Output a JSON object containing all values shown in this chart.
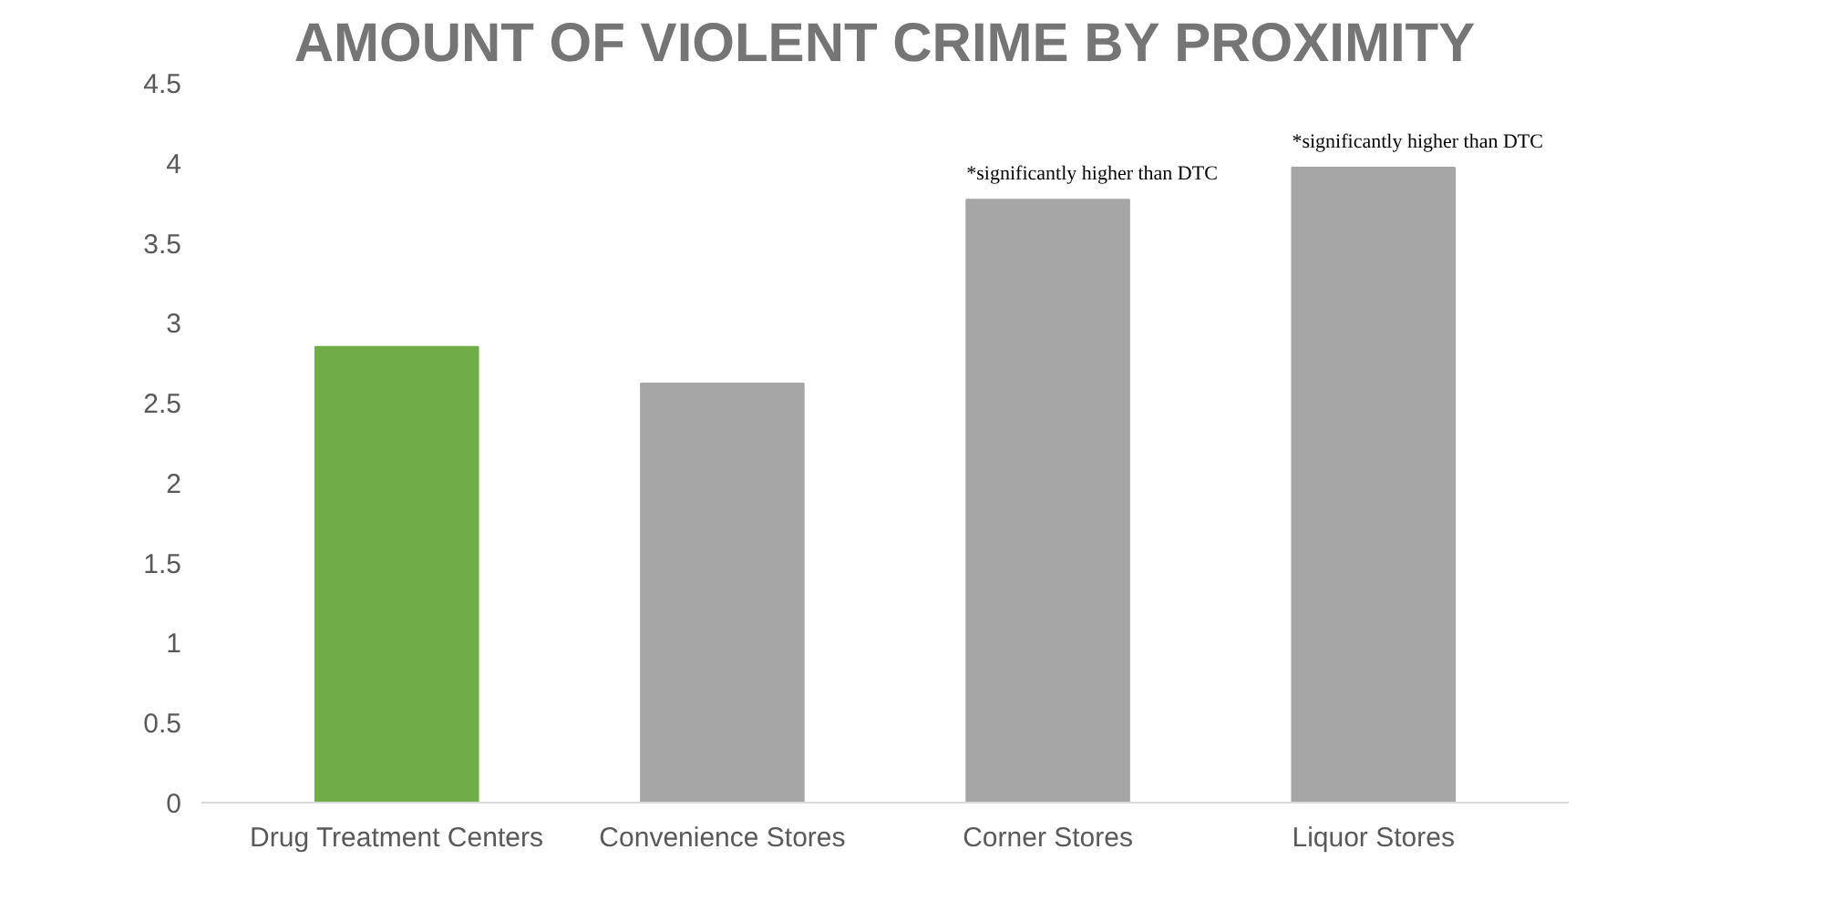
{
  "chart_data": {
    "type": "bar",
    "title": "AMOUNT OF VIOLENT CRIME BY PROXIMITY",
    "categories": [
      "Drug Treatment Centers",
      "Convenience Stores",
      "Corner Stores",
      "Liquor Stores"
    ],
    "values": [
      2.85,
      2.62,
      3.77,
      3.97
    ],
    "colors": [
      "#70ad47",
      "#a5a5a5",
      "#a5a5a5",
      "#a5a5a5"
    ],
    "ylim": [
      0,
      4.5
    ],
    "yticks": [
      0,
      0.5,
      1,
      1.5,
      2,
      2.5,
      3,
      3.5,
      4,
      4.5
    ],
    "grid": false,
    "annotations": [
      {
        "text": "*significantly higher than DTC",
        "x": "Corner Stores",
        "y": 3.77
      },
      {
        "text": "*significantly higher than DTC",
        "x": "Liquor Stores",
        "y": 3.97
      }
    ]
  }
}
